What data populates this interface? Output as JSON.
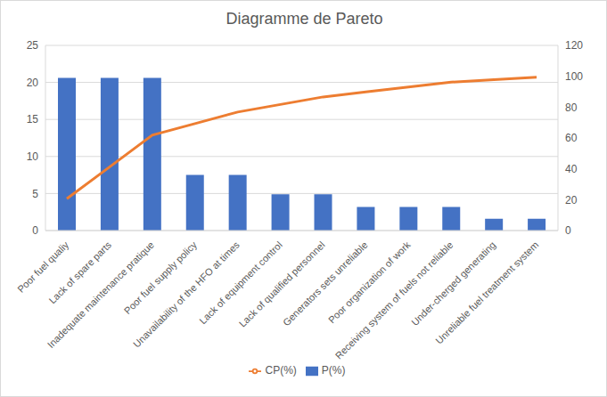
{
  "chart_data": {
    "type": "bar",
    "title": "Diagramme de Pareto",
    "categories": [
      "Poor fuel qualiy",
      "Lack of spare parts",
      "Inadequate maintenance pratique",
      "Poor fuel supply policy",
      "Unavailability of the HFO at times",
      "Lack of equipment control",
      "Lack of qualified personnel",
      "Generators sets unreliable",
      "Poor organization of work",
      "Receiving system of fuels not reliable",
      "Under-cherged generating",
      "Unreliable fuel treatment system"
    ],
    "series": [
      {
        "name": "P(%)",
        "type": "bar",
        "color": "#4472c4",
        "values": [
          20.6,
          20.6,
          20.6,
          7.5,
          7.5,
          4.9,
          4.9,
          3.2,
          3.2,
          3.2,
          1.6,
          1.6
        ]
      },
      {
        "name": "CP(%)",
        "type": "line",
        "color": "#ed7d31",
        "axis": "y2",
        "values": [
          20.6,
          41.2,
          61.8,
          69.3,
          76.8,
          81.7,
          86.6,
          89.8,
          93.0,
          96.2,
          97.8,
          99.4
        ]
      }
    ],
    "ylim": [
      0,
      25
    ],
    "yticks": [
      0,
      5,
      10,
      15,
      20,
      25
    ],
    "y2lim": [
      0,
      120
    ],
    "y2ticks": [
      0,
      20,
      40,
      60,
      80,
      100,
      120
    ],
    "grid": true,
    "legend": "bottom"
  }
}
